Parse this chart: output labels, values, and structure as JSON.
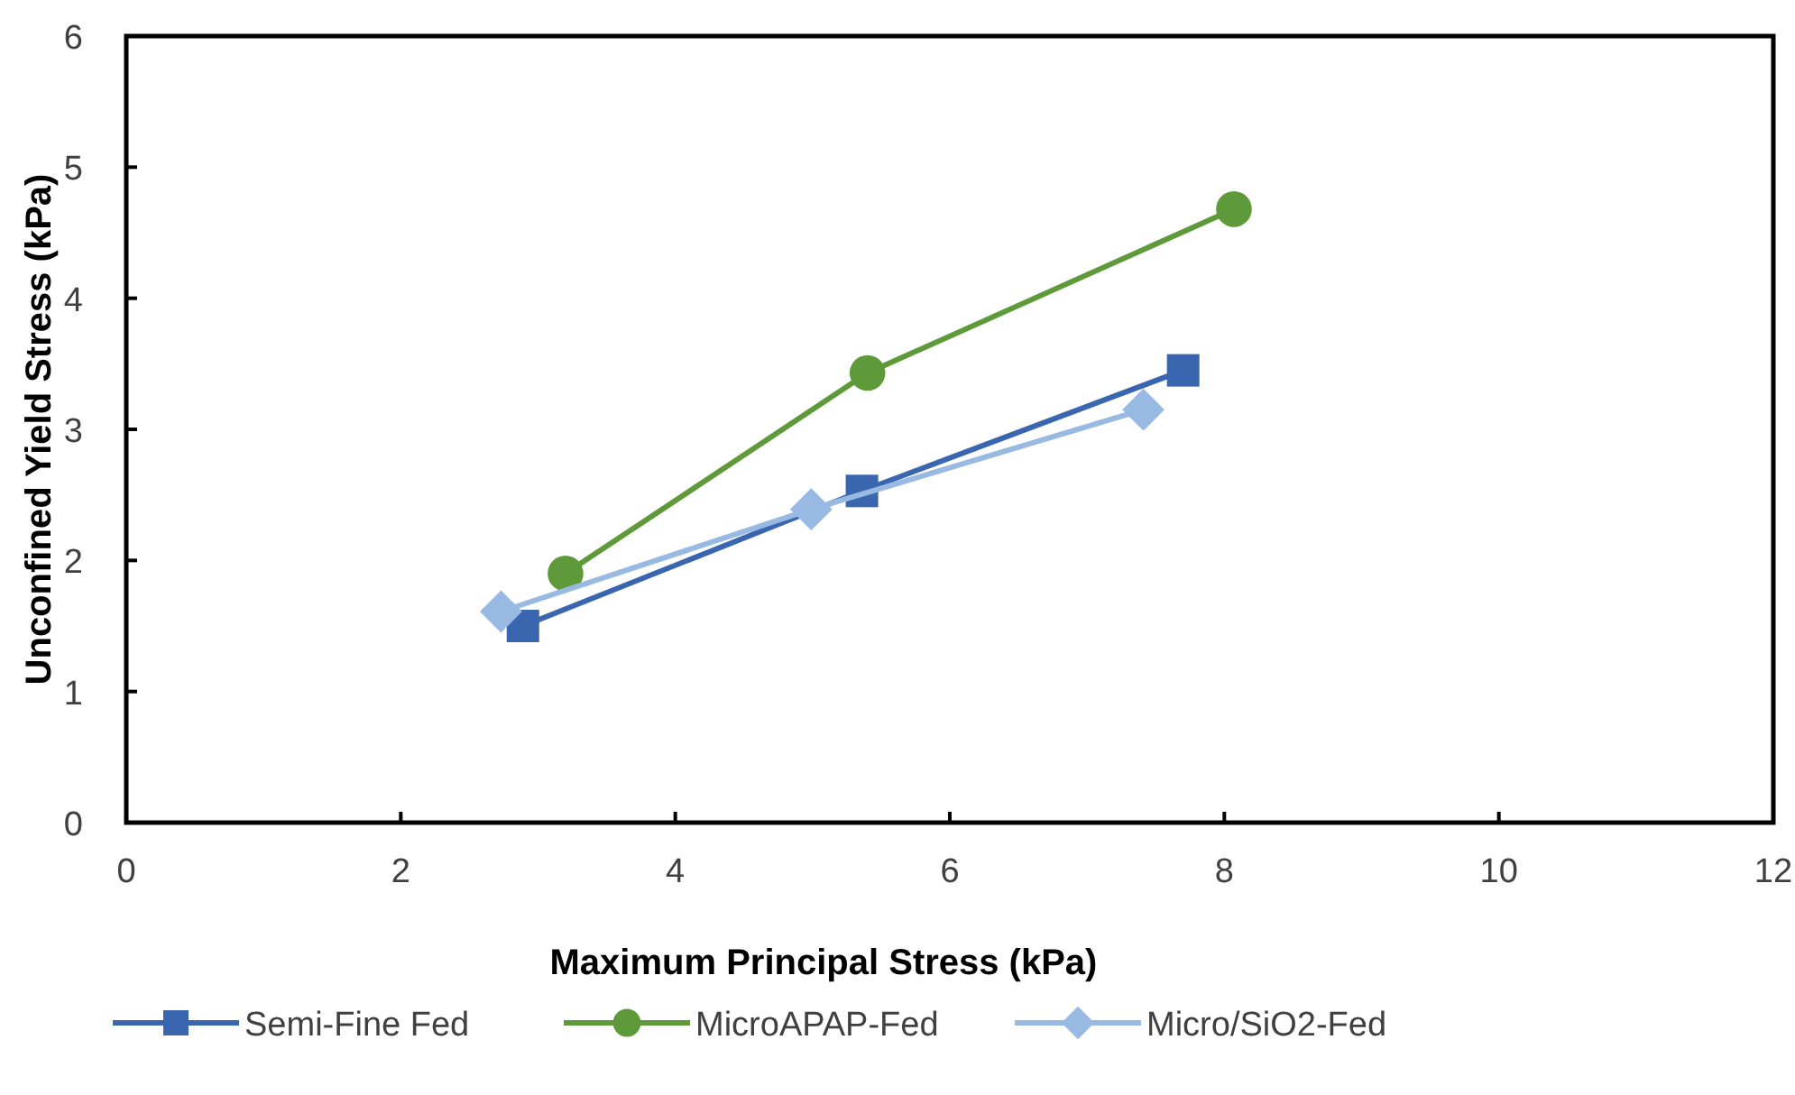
{
  "chart_data": {
    "type": "line",
    "xlabel": "Maximum Principal Stress (kPa)",
    "ylabel": "Unconfined Yield Stress (kPa)",
    "xlim": [
      0,
      12
    ],
    "xticks": [
      0,
      2,
      4,
      6,
      8,
      10,
      12
    ],
    "ylim": [
      0,
      6
    ],
    "yticks": [
      0,
      1,
      2,
      3,
      4,
      5,
      6
    ],
    "grid": false,
    "legend": "bottom",
    "series": [
      {
        "name": "Semi-Fine Fed",
        "color": "#3a66b0",
        "marker": "square",
        "x": [
          2.89,
          5.36,
          7.7
        ],
        "values": [
          1.5,
          2.53,
          3.45
        ]
      },
      {
        "name": "MicroAPAP-Fed",
        "color": "#5f9a3a",
        "marker": "circle",
        "x": [
          3.2,
          5.4,
          8.07
        ],
        "values": [
          1.9,
          3.43,
          4.68
        ]
      },
      {
        "name": "Micro/SiO2-Fed",
        "color": "#98bae2",
        "marker": "diamond",
        "x": [
          2.73,
          4.99,
          7.41
        ],
        "values": [
          1.61,
          2.39,
          3.15
        ]
      }
    ]
  }
}
